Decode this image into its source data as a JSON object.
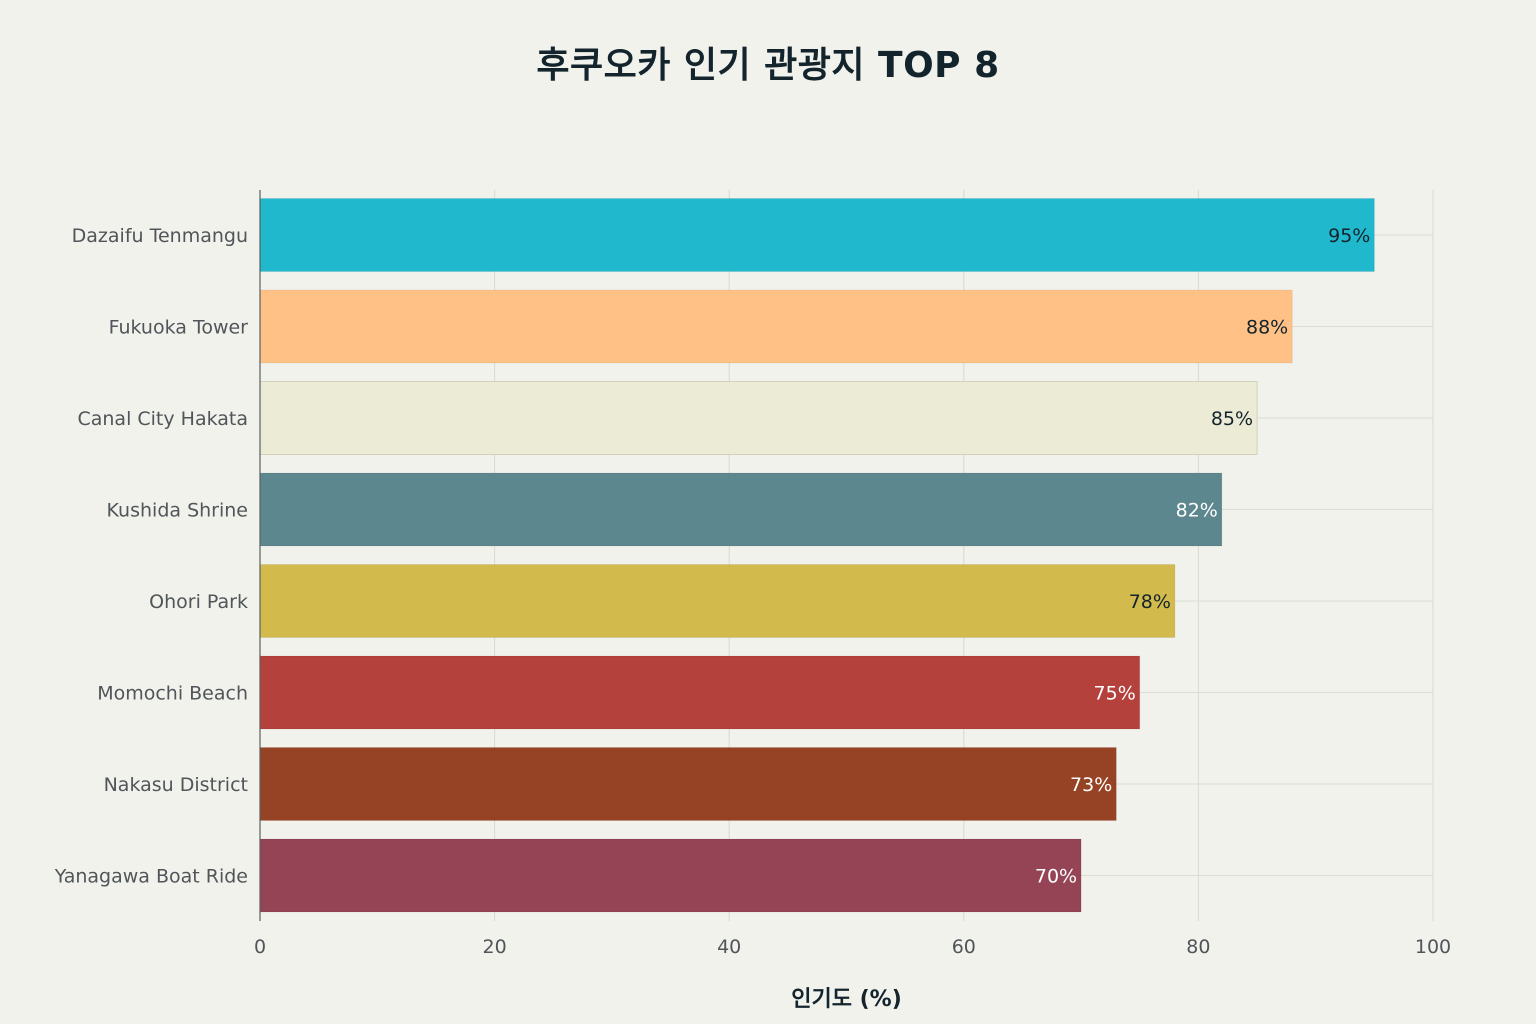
{
  "chart_data": {
    "type": "bar",
    "orientation": "horizontal",
    "title": "후쿠오카 인기 관광지 TOP 8",
    "xlabel": "인기도 (%)",
    "ylabel": "",
    "xlim": [
      0,
      100
    ],
    "xticks": [
      0,
      20,
      40,
      60,
      80,
      100
    ],
    "grid": true,
    "categories": [
      "Dazaifu Tenmangu",
      "Fukuoka Tower",
      "Canal City Hakata",
      "Kushida Shrine",
      "Ohori Park",
      "Momochi Beach",
      "Nakasu District",
      "Yanagawa Boat Ride"
    ],
    "values": [
      95,
      88,
      85,
      82,
      78,
      75,
      73,
      70
    ],
    "value_labels": [
      "95%",
      "88%",
      "85%",
      "82%",
      "78%",
      "75%",
      "73%",
      "70%"
    ],
    "colors": [
      "#1fb8cd",
      "#ffc185",
      "#ecebd5",
      "#5d878f",
      "#d2ba4c",
      "#b4413c",
      "#964325",
      "#944454"
    ],
    "label_colors": [
      "#13242d",
      "#13242d",
      "#13242d",
      "#ffffff",
      "#13242d",
      "#ffffff",
      "#ffffff",
      "#ffffff"
    ]
  }
}
